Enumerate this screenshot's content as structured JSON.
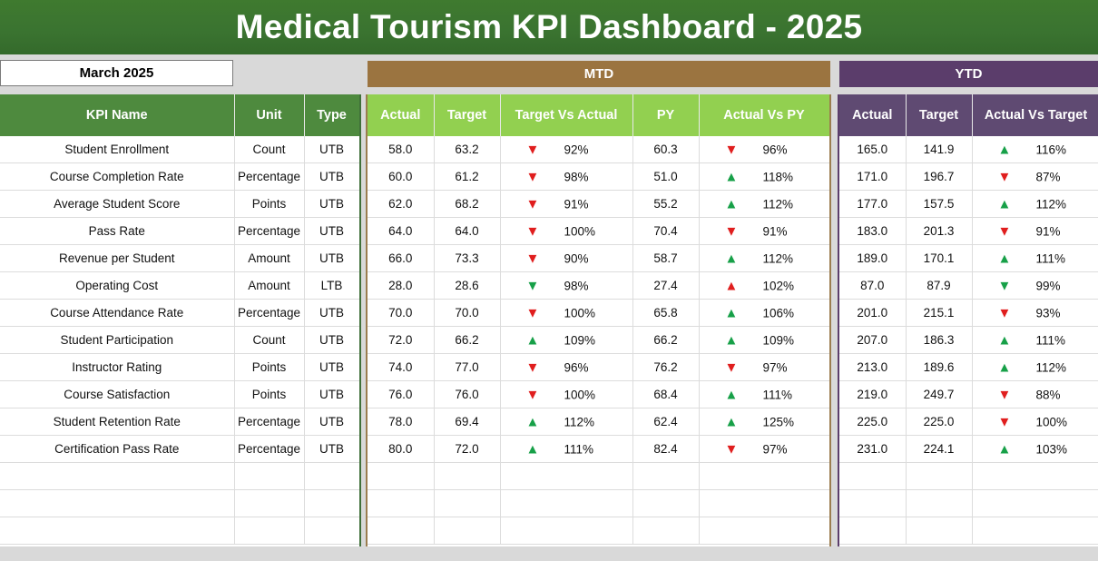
{
  "title": "Medical Tourism KPI Dashboard - 2025",
  "month": "March 2025",
  "bands": {
    "mtd": "MTD",
    "ytd": "YTD"
  },
  "headers": {
    "kpi": "KPI Name",
    "unit": "Unit",
    "type": "Type",
    "mtd_actual": "Actual",
    "mtd_target": "Target",
    "mtd_tva": "Target Vs Actual",
    "mtd_py": "PY",
    "mtd_avp": "Actual Vs PY",
    "ytd_actual": "Actual",
    "ytd_target": "Target",
    "ytd_avt": "Actual Vs Target"
  },
  "rows": [
    {
      "name": "Student Enrollment",
      "unit": "Count",
      "type": "UTB",
      "mtd_actual": "58.0",
      "mtd_target": "63.2",
      "tva_dir": "down",
      "tva_pct": "92%",
      "py": "60.3",
      "avp_dir": "down",
      "avp_pct": "96%",
      "ytd_actual": "165.0",
      "ytd_target": "141.9",
      "avt_dir": "up",
      "avt_pct": "116%"
    },
    {
      "name": "Course Completion Rate",
      "unit": "Percentage",
      "type": "UTB",
      "mtd_actual": "60.0",
      "mtd_target": "61.2",
      "tva_dir": "down",
      "tva_pct": "98%",
      "py": "51.0",
      "avp_dir": "up",
      "avp_pct": "118%",
      "ytd_actual": "171.0",
      "ytd_target": "196.7",
      "avt_dir": "down",
      "avt_pct": "87%"
    },
    {
      "name": "Average Student Score",
      "unit": "Points",
      "type": "UTB",
      "mtd_actual": "62.0",
      "mtd_target": "68.2",
      "tva_dir": "down",
      "tva_pct": "91%",
      "py": "55.2",
      "avp_dir": "up",
      "avp_pct": "112%",
      "ytd_actual": "177.0",
      "ytd_target": "157.5",
      "avt_dir": "up",
      "avt_pct": "112%"
    },
    {
      "name": "Pass Rate",
      "unit": "Percentage",
      "type": "UTB",
      "mtd_actual": "64.0",
      "mtd_target": "64.0",
      "tva_dir": "down",
      "tva_pct": "100%",
      "py": "70.4",
      "avp_dir": "down",
      "avp_pct": "91%",
      "ytd_actual": "183.0",
      "ytd_target": "201.3",
      "avt_dir": "down",
      "avt_pct": "91%"
    },
    {
      "name": "Revenue per Student",
      "unit": "Amount",
      "type": "UTB",
      "mtd_actual": "66.0",
      "mtd_target": "73.3",
      "tva_dir": "down",
      "tva_pct": "90%",
      "py": "58.7",
      "avp_dir": "up",
      "avp_pct": "112%",
      "ytd_actual": "189.0",
      "ytd_target": "170.1",
      "avt_dir": "up",
      "avt_pct": "111%"
    },
    {
      "name": "Operating Cost",
      "unit": "Amount",
      "type": "LTB",
      "mtd_actual": "28.0",
      "mtd_target": "28.6",
      "tva_dir": "down-good",
      "tva_pct": "98%",
      "py": "27.4",
      "avp_dir": "up-bad",
      "avp_pct": "102%",
      "ytd_actual": "87.0",
      "ytd_target": "87.9",
      "avt_dir": "down-good",
      "avt_pct": "99%"
    },
    {
      "name": "Course Attendance Rate",
      "unit": "Percentage",
      "type": "UTB",
      "mtd_actual": "70.0",
      "mtd_target": "70.0",
      "tva_dir": "down",
      "tva_pct": "100%",
      "py": "65.8",
      "avp_dir": "up",
      "avp_pct": "106%",
      "ytd_actual": "201.0",
      "ytd_target": "215.1",
      "avt_dir": "down",
      "avt_pct": "93%"
    },
    {
      "name": "Student Participation",
      "unit": "Count",
      "type": "UTB",
      "mtd_actual": "72.0",
      "mtd_target": "66.2",
      "tva_dir": "up",
      "tva_pct": "109%",
      "py": "66.2",
      "avp_dir": "up",
      "avp_pct": "109%",
      "ytd_actual": "207.0",
      "ytd_target": "186.3",
      "avt_dir": "up",
      "avt_pct": "111%"
    },
    {
      "name": "Instructor Rating",
      "unit": "Points",
      "type": "UTB",
      "mtd_actual": "74.0",
      "mtd_target": "77.0",
      "tva_dir": "down",
      "tva_pct": "96%",
      "py": "76.2",
      "avp_dir": "down",
      "avp_pct": "97%",
      "ytd_actual": "213.0",
      "ytd_target": "189.6",
      "avt_dir": "up",
      "avt_pct": "112%"
    },
    {
      "name": "Course Satisfaction",
      "unit": "Points",
      "type": "UTB",
      "mtd_actual": "76.0",
      "mtd_target": "76.0",
      "tva_dir": "down",
      "tva_pct": "100%",
      "py": "68.4",
      "avp_dir": "up",
      "avp_pct": "111%",
      "ytd_actual": "219.0",
      "ytd_target": "249.7",
      "avt_dir": "down",
      "avt_pct": "88%"
    },
    {
      "name": "Student Retention Rate",
      "unit": "Percentage",
      "type": "UTB",
      "mtd_actual": "78.0",
      "mtd_target": "69.4",
      "tva_dir": "up",
      "tva_pct": "112%",
      "py": "62.4",
      "avp_dir": "up",
      "avp_pct": "125%",
      "ytd_actual": "225.0",
      "ytd_target": "225.0",
      "avt_dir": "down",
      "avt_pct": "100%"
    },
    {
      "name": "Certification Pass Rate",
      "unit": "Percentage",
      "type": "UTB",
      "mtd_actual": "80.0",
      "mtd_target": "72.0",
      "tva_dir": "up",
      "tva_pct": "111%",
      "py": "82.4",
      "avp_dir": "down",
      "avp_pct": "97%",
      "ytd_actual": "231.0",
      "ytd_target": "224.1",
      "avt_dir": "up",
      "avt_pct": "103%"
    }
  ],
  "empty_rows": 3,
  "icons": {
    "up": "triangle-up-icon",
    "down": "triangle-down-icon"
  },
  "colors": {
    "title_green": "#3a7330",
    "mtd_brown": "#9b7440",
    "ytd_purple": "#5b3d6b",
    "mtd_header": "#92d050",
    "kpi_header": "#4e8a3e",
    "ytd_header": "#5f4a72",
    "up_green": "#17a048",
    "down_red": "#e01e1e"
  }
}
